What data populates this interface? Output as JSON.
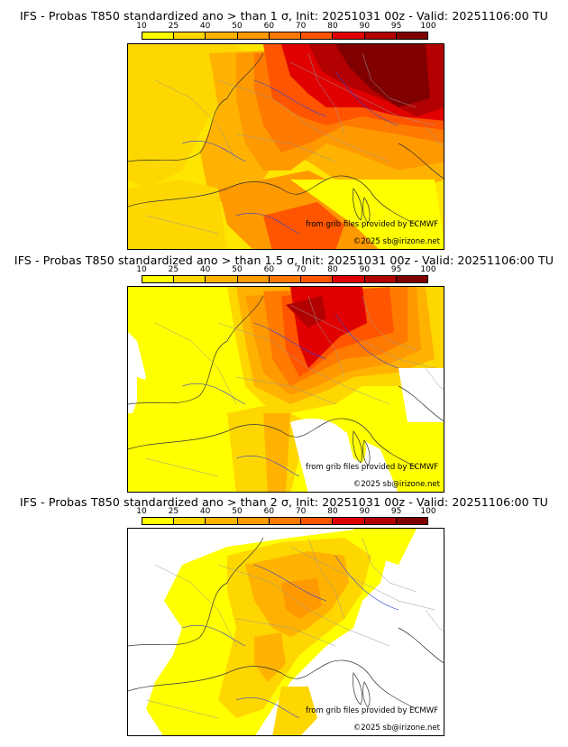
{
  "legend": {
    "ticks": [
      "10",
      "25",
      "40",
      "50",
      "60",
      "70",
      "80",
      "90",
      "95",
      "100"
    ],
    "colors": [
      "#ffff00",
      "#ffd700",
      "#ffb300",
      "#ff9900",
      "#ff7a00",
      "#ff5500",
      "#e00000",
      "#b30000",
      "#800000"
    ]
  },
  "panels": [
    {
      "title": "IFS - Probas T850  standardized ano > than 1 σ, Init: 20251031 00z - Valid: 20251106:00 TU"
    },
    {
      "title": "IFS - Probas T850  standardized ano > than 1.5 σ, Init: 20251031 00z - Valid: 20251106:00 TU"
    },
    {
      "title": "IFS - Probas T850  standardized ano > than 2 σ, Init: 20251031 00z - Valid: 20251106:00 TU"
    }
  ],
  "credits": {
    "source": "from grib files provided by ECMWF",
    "copyright": "©2025 sb@irizone.net"
  }
}
